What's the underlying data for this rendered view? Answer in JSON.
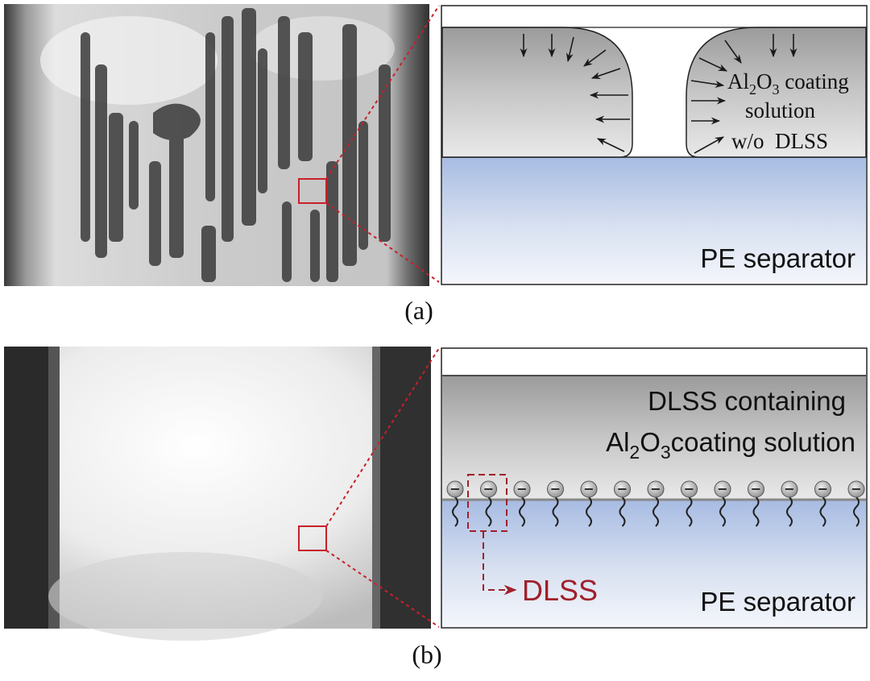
{
  "panels": [
    {
      "caption": "(a)",
      "right_labels": {
        "coating_line1_prefix": "Al",
        "coating_line1_sub1": "2",
        "coating_line1_mid": "O",
        "coating_line1_sub2": "3",
        "coating_line1_suffix": " coating",
        "coating_line2": "solution",
        "coating_line3": "w/o  DLSS",
        "substrate": "PE separator"
      }
    },
    {
      "caption": "(b)",
      "right_labels": {
        "coating_line1": "DLSS containing",
        "coating_line2_prefix": "Al",
        "coating_line2_sub1": "2",
        "coating_line2_mid": "O",
        "coating_line2_sub2": "3",
        "coating_line2_suffix": "coating solution",
        "surfactant_symbol": "−",
        "callout": "DLSS",
        "substrate": "PE separator"
      }
    }
  ],
  "colors": {
    "callout": "#a0202a",
    "zoom_box": "#c8202a",
    "solution_gray": "#b9b9b9",
    "separator_blue": "#a9bde3"
  }
}
